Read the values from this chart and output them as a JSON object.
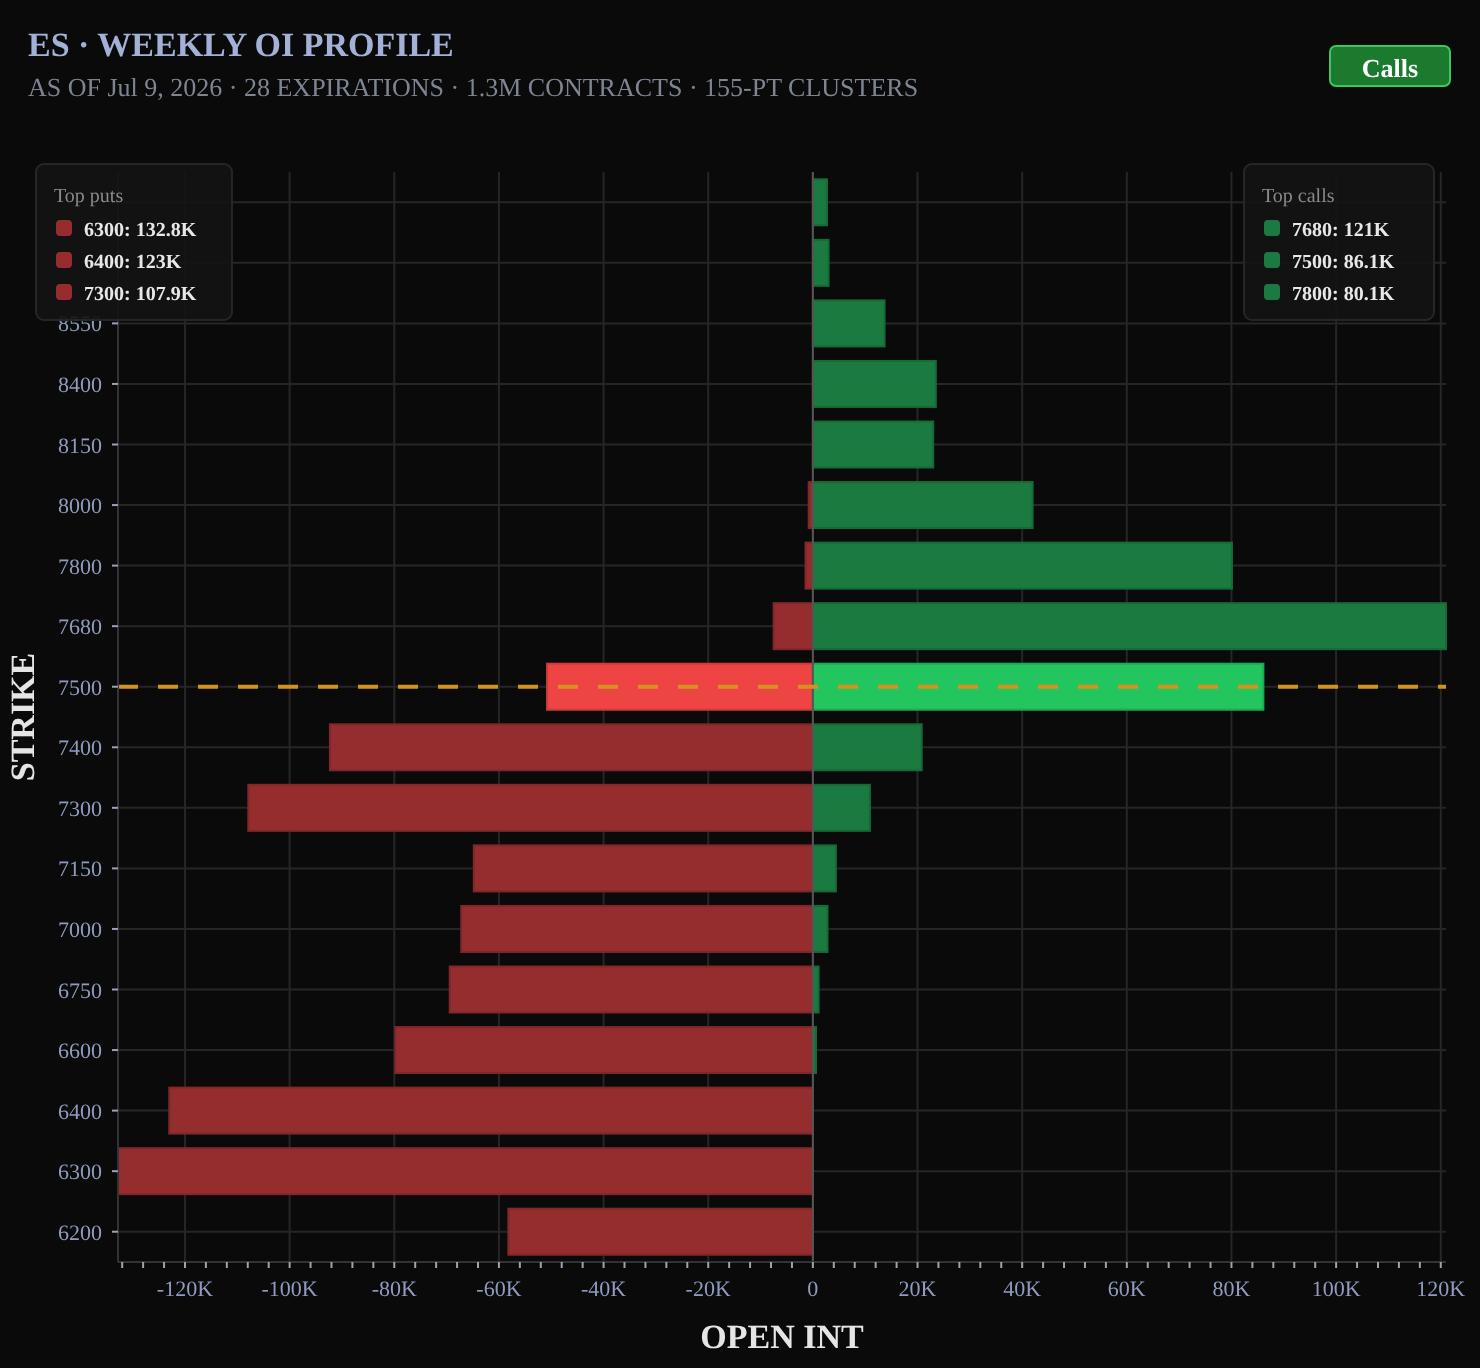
{
  "chart_data": {
    "type": "bar",
    "orientation": "horizontal",
    "stacked": true,
    "title": "ES · WEEKLY OI PROFILE",
    "subtitle": "AS OF Jul 9, 2026 · 28 EXPIRATIONS · 1.3M CONTRACTS · 155-PT CLUSTERS",
    "xlabel": "OPEN INT",
    "ylabel": "STRIKE",
    "categories": [
      null,
      null,
      "8550",
      "8400",
      "8150",
      "8000",
      "7800",
      "7680",
      "7500",
      "7400",
      "7300",
      "7150",
      "7000",
      "6750",
      "6600",
      "6400",
      "6300",
      "6200"
    ],
    "series": [
      {
        "color": "#952d2f",
        "colors": [
          "#952d2f",
          "#952d2f",
          "#952d2f",
          "#952d2f",
          "#952d2f",
          "#952d2f",
          "#952d2f",
          "#952d2f",
          "#ef4444",
          "#952d2f",
          "#952d2f",
          "#952d2f",
          "#952d2f",
          "#952d2f",
          "#952d2f",
          "#952d2f",
          "#952d2f",
          "#952d2f"
        ],
        "values": [
          0,
          0,
          0,
          0,
          0,
          -800,
          -1400,
          -7500,
          -50800,
          -92300,
          -107900,
          -64800,
          -67200,
          -69400,
          -79800,
          -123000,
          -132800,
          -58200
        ]
      },
      {
        "color": "#1b7a40",
        "colors": [
          "#1b7a40",
          "#1b7a40",
          "#1b7a40",
          "#1b7a40",
          "#1b7a40",
          "#1b7a40",
          "#1b7a40",
          "#1b7a40",
          "#22c55e",
          "#1b7a40",
          "#1b7a40",
          "#1b7a40",
          "#1b7a40",
          "#1b7a40",
          "#1b7a40",
          "#1b7a40",
          "#1b7a40",
          "#1b7a40"
        ],
        "values": [
          2700,
          3000,
          13700,
          23500,
          23000,
          42000,
          80100,
          121000,
          86100,
          20800,
          10900,
          4400,
          2800,
          1100,
          600,
          0,
          0,
          0
        ]
      }
    ],
    "xlim": [
      -132800,
      121000
    ],
    "xticks": [
      {
        "value": -132000,
        "label": null
      },
      {
        "value": -128000,
        "label": null
      },
      {
        "value": -124000,
        "label": null
      },
      {
        "value": -120000,
        "label": "-120K"
      },
      {
        "value": -116000,
        "label": null
      },
      {
        "value": -112000,
        "label": null
      },
      {
        "value": -108000,
        "label": null
      },
      {
        "value": -104000,
        "label": null
      },
      {
        "value": -100000,
        "label": "-100K"
      },
      {
        "value": -96000,
        "label": null
      },
      {
        "value": -92000,
        "label": null
      },
      {
        "value": -88000,
        "label": null
      },
      {
        "value": -84000,
        "label": null
      },
      {
        "value": -80000,
        "label": "-80K"
      },
      {
        "value": -76000,
        "label": null
      },
      {
        "value": -72000,
        "label": null
      },
      {
        "value": -68000,
        "label": null
      },
      {
        "value": -64000,
        "label": null
      },
      {
        "value": -60000,
        "label": "-60K"
      },
      {
        "value": -56000,
        "label": null
      },
      {
        "value": -52000,
        "label": null
      },
      {
        "value": -48000,
        "label": null
      },
      {
        "value": -44000,
        "label": null
      },
      {
        "value": -40000,
        "label": "-40K"
      },
      {
        "value": -36000,
        "label": null
      },
      {
        "value": -32000,
        "label": null
      },
      {
        "value": -28000,
        "label": null
      },
      {
        "value": -24000,
        "label": null
      },
      {
        "value": -20000,
        "label": "-20K"
      },
      {
        "value": -16000,
        "label": null
      },
      {
        "value": -12000,
        "label": null
      },
      {
        "value": -8000,
        "label": null
      },
      {
        "value": -4000,
        "label": null
      },
      0,
      {
        "value": 4000,
        "label": null
      },
      {
        "value": 8000,
        "label": null
      },
      {
        "value": 12000,
        "label": null
      },
      {
        "value": 16000,
        "label": null
      },
      {
        "value": 20000,
        "label": "20K"
      },
      {
        "value": 24000,
        "label": null
      },
      {
        "value": 28000,
        "label": null
      },
      {
        "value": 32000,
        "label": null
      },
      {
        "value": 36000,
        "label": null
      },
      {
        "value": 40000,
        "label": "40K"
      },
      {
        "value": 44000,
        "label": null
      },
      {
        "value": 48000,
        "label": null
      },
      {
        "value": 52000,
        "label": null
      },
      {
        "value": 56000,
        "label": null
      },
      {
        "value": 60000,
        "label": "60K"
      },
      {
        "value": 64000,
        "label": null
      },
      {
        "value": 68000,
        "label": null
      },
      {
        "value": 72000,
        "label": null
      },
      {
        "value": 76000,
        "label": null
      },
      {
        "value": 80000,
        "label": "80K"
      },
      {
        "value": 84000,
        "label": null
      },
      {
        "value": 88000,
        "label": null
      },
      {
        "value": 92000,
        "label": null
      },
      {
        "value": 96000,
        "label": null
      },
      {
        "value": 100000,
        "label": "100K"
      },
      {
        "value": 104000,
        "label": null
      },
      {
        "value": 108000,
        "label": null
      },
      {
        "value": 112000,
        "label": null
      },
      {
        "value": 116000,
        "label": null
      },
      {
        "value": 120000,
        "label": "120K"
      }
    ],
    "grid": true,
    "ref_lines": [
      {
        "axis": "y",
        "value": "7500",
        "color": "#d4911e",
        "line_style": "dashed"
      }
    ],
    "annotations": [
      "Calls",
      "Top puts",
      "6300: 132.8K",
      "6400: 123K",
      "7300: 107.9K",
      "Top calls",
      "7680: 121K",
      "7500: 86.1K",
      "7800: 80.1K"
    ]
  }
}
